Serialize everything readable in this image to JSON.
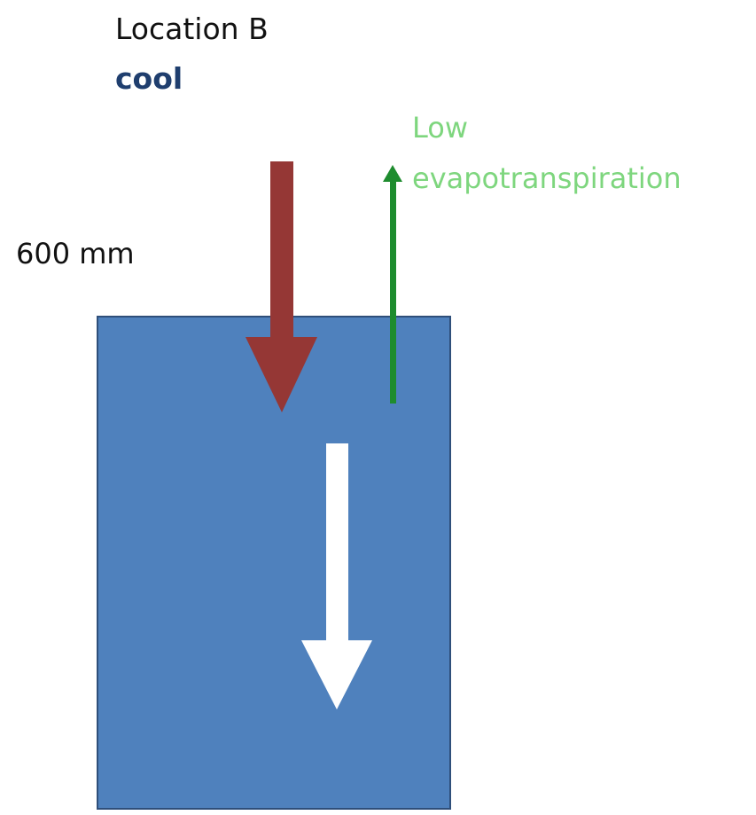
{
  "title": "Location B",
  "subtitle": "cool",
  "precipitation_label": "600 mm",
  "evapotranspiration_label": [
    "Low",
    "evapotranspiration"
  ]
}
